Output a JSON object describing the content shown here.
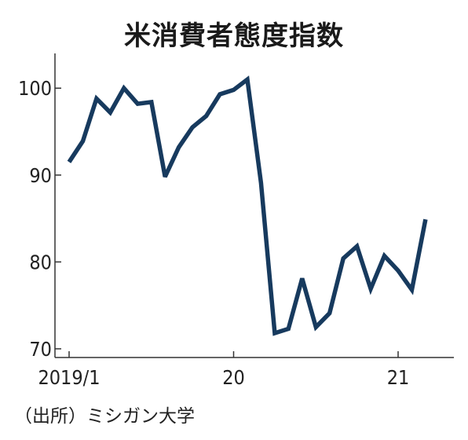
{
  "title": "米消費者態度指数",
  "source": "（出所）ミシガン大学",
  "colors": {
    "line": "#173a5e",
    "axis": "#333333",
    "text": "#222222"
  },
  "chart_data": {
    "type": "line",
    "title": "米消費者態度指数",
    "xlabel": "",
    "ylabel": "",
    "ylim": [
      69,
      104
    ],
    "yticks": [
      70,
      80,
      90,
      100
    ],
    "xlim": [
      0,
      26.5
    ],
    "xticks": [
      {
        "x": 0,
        "label": "2019/1"
      },
      {
        "x": 12,
        "label": "20"
      },
      {
        "x": 24,
        "label": "21"
      }
    ],
    "grid": false,
    "series": [
      {
        "x": [
          0,
          1,
          2,
          3,
          4,
          5,
          6,
          7,
          8,
          9,
          10,
          11,
          12,
          13,
          14,
          15,
          16,
          17,
          18,
          19,
          20,
          21,
          22,
          23,
          24,
          25,
          26
        ],
        "values": [
          91.5,
          93.9,
          98.8,
          97.2,
          100.0,
          98.2,
          98.4,
          89.8,
          93.2,
          95.5,
          96.8,
          99.3,
          99.8,
          101.0,
          89.1,
          71.8,
          72.3,
          78.1,
          72.5,
          74.1,
          80.4,
          81.8,
          76.9,
          80.7,
          79.0,
          76.8,
          84.9
        ]
      }
    ]
  }
}
